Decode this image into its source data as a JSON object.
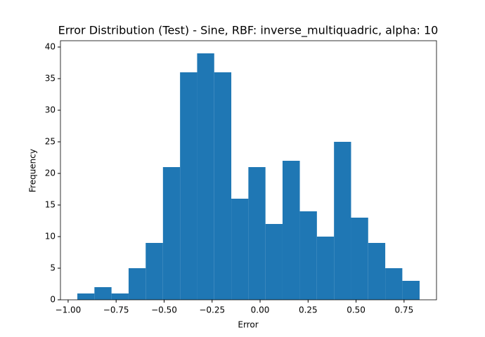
{
  "chart_data": {
    "type": "histogram",
    "title": "Error Distribution (Test) - Sine, RBF: inverse_multiquadric, alpha: 10",
    "x_label": "Error",
    "y_label": "Frequency",
    "color": "#1f77b4",
    "bins": [
      -0.952,
      -0.863,
      -0.774,
      -0.685,
      -0.596,
      -0.506,
      -0.417,
      -0.328,
      -0.239,
      -0.15,
      -0.061,
      0.028,
      0.117,
      0.207,
      0.296,
      0.385,
      0.474,
      0.563,
      0.652,
      0.741,
      0.831
    ],
    "values": [
      1,
      2,
      1,
      5,
      9,
      21,
      36,
      39,
      36,
      16,
      21,
      12,
      22,
      14,
      10,
      25,
      13,
      9,
      5,
      3
    ],
    "xlim": [
      -1.04,
      0.919
    ],
    "ylim": [
      0,
      41
    ],
    "xticks": [
      {
        "value": -1,
        "label": "−1.00"
      },
      {
        "value": -0.75,
        "label": "−0.75"
      },
      {
        "value": -0.5,
        "label": "−0.50"
      },
      {
        "value": -0.25,
        "label": "−0.25"
      },
      {
        "value": 0,
        "label": "0.00"
      },
      {
        "value": 0.25,
        "label": "0.25"
      },
      {
        "value": 0.5,
        "label": "0.50"
      },
      {
        "value": 0.75,
        "label": "0.75"
      }
    ],
    "yticks": [
      0,
      5,
      10,
      15,
      20,
      25,
      30,
      35,
      40
    ]
  }
}
